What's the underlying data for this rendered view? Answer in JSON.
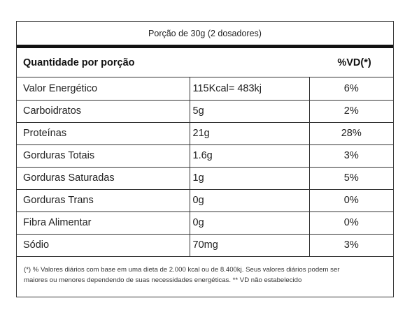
{
  "serving": "Porção de 30g (2 dosadores)",
  "header": {
    "quantity_label": "Quantidade por porção",
    "vd_label": "%VD(*)"
  },
  "rows": [
    {
      "name": "Valor Energético",
      "amount": "115Kcal= 483kj",
      "vd": "6%"
    },
    {
      "name": "Carboidratos",
      "amount": "5g",
      "vd": "2%"
    },
    {
      "name": "Proteínas",
      "amount": "21g",
      "vd": "28%"
    },
    {
      "name": "Gorduras Totais",
      "amount": "1.6g",
      "vd": "3%"
    },
    {
      "name": "Gorduras Saturadas",
      "amount": "1g",
      "vd": "5%"
    },
    {
      "name": "Gorduras Trans",
      "amount": "0g",
      "vd": "0%"
    },
    {
      "name": "Fibra Alimentar",
      "amount": "0g",
      "vd": "0%"
    },
    {
      "name": "Sódio",
      "amount": "70mg",
      "vd": "3%"
    }
  ],
  "footnote": {
    "line1": "(*) % Valores diários com base em uma dieta de 2.000 kcal ou de 8.400kj. Seus valores diários podem ser",
    "line2": "maiores ou menores dependendo de suas necessidades energéticas. ** VD não estabelecido"
  }
}
